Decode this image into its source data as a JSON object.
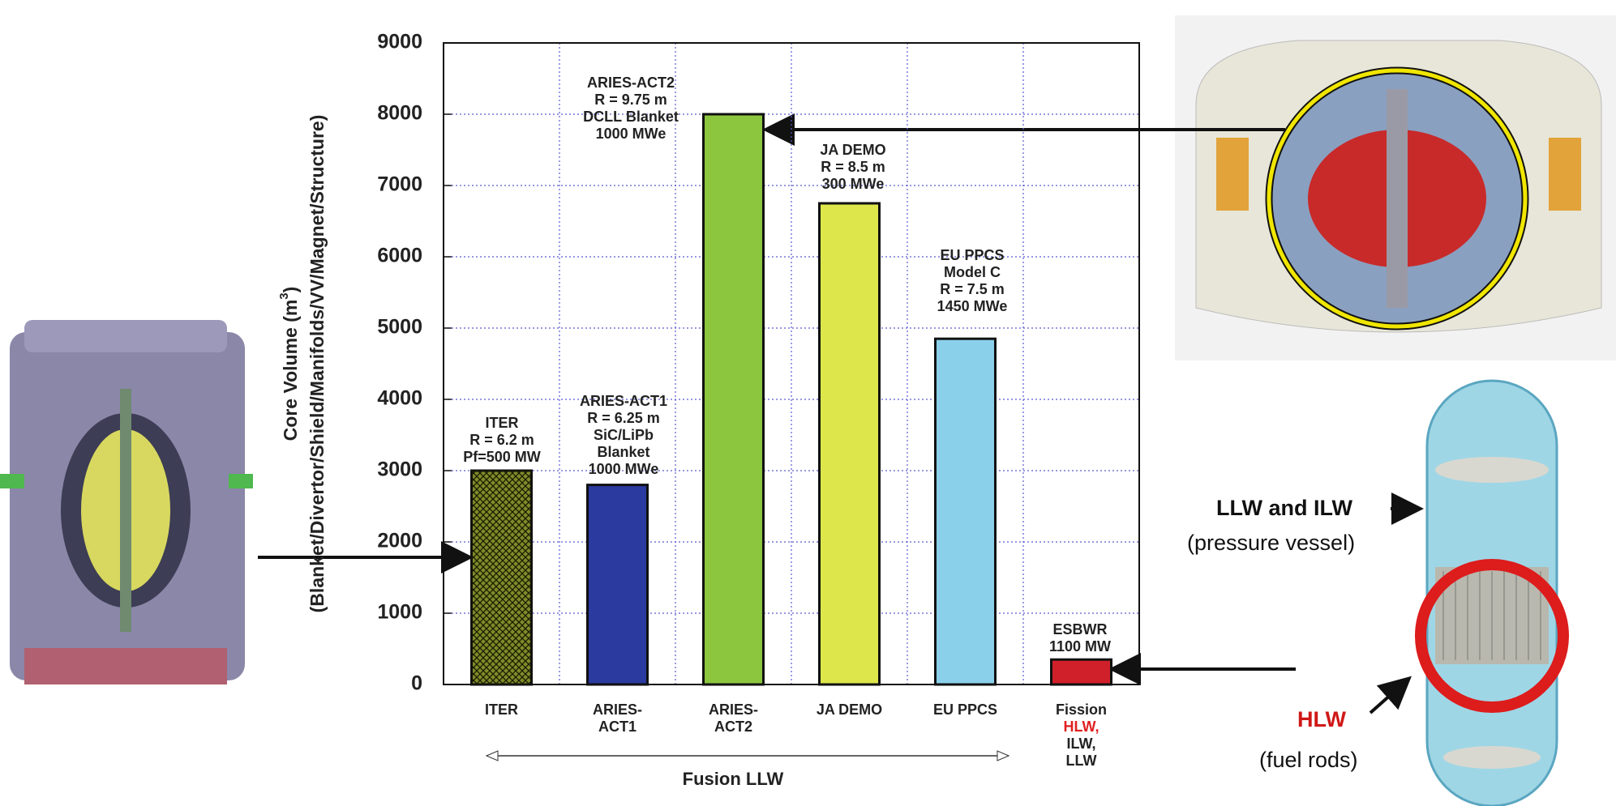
{
  "chart_data": {
    "type": "bar",
    "y_label_parts": [
      "Core Volume (m",
      "3",
      ")"
    ],
    "y_label_2": "(Blanket/Divertor/Shield/Manifolds/VV/Magnet/Structure)",
    "categories": [
      "ITER",
      "ARIES-\nACT1",
      "ARIES-\nACT2",
      "JA DEMO",
      "EU PPCS",
      "Fission"
    ],
    "values": [
      3000,
      2800,
      8000,
      6750,
      4850,
      350
    ],
    "colors": [
      "#7d8c2a",
      "#2b3a9e",
      "#8cc63f",
      "#dde64a",
      "#8bd0ea",
      "#d0202a"
    ],
    "hatch": [
      true,
      false,
      false,
      false,
      false,
      false
    ],
    "annotations": [
      "ITER\nR = 6.2 m\nPf=500 MW",
      "ARIES-ACT1\nR = 6.25 m\nSiC/LiPb\nBlanket\n1000 MWe",
      "ARIES-ACT2\nR = 9.75 m\nDCLL Blanket\n1000 MWe",
      "JA DEMO\nR = 8.5 m\n300 MWe",
      "EU PPCS\nModel C\nR = 7.5 m\n1450 MWe",
      "ESBWR\n1100 MW"
    ],
    "fission_sublabels": [
      {
        "text": "HLW,",
        "color": "#e02020"
      },
      {
        "text": "ILW,\nLLW",
        "color": "#222222"
      }
    ],
    "group_label": "Fusion LLW",
    "ylim": [
      0,
      9000
    ],
    "yticks": [
      0,
      1000,
      2000,
      3000,
      4000,
      5000,
      6000,
      7000,
      8000,
      9000
    ],
    "grid": true
  },
  "labels": {
    "llw_ilw": "LLW and ILW",
    "pressure_vessel": "(pressure vessel)",
    "hlw": "HLW",
    "fuel_rods": "(fuel rods)"
  }
}
